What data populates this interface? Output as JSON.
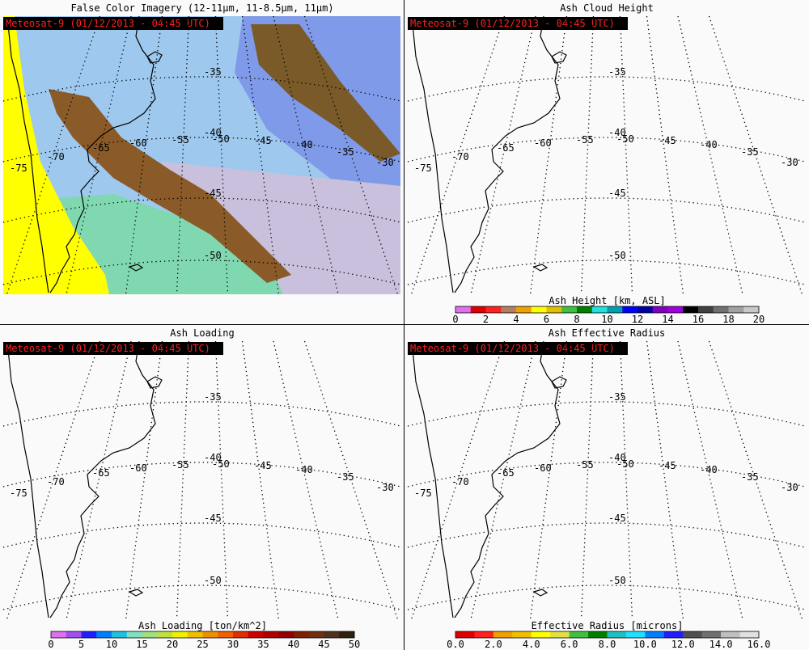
{
  "panels": [
    {
      "title": "False Color Imagery (12-11μm, 11-8.5μm, 11μm)",
      "stamp": "Meteosat-9  (01/12/2013 - 04:45 UTC)"
    },
    {
      "title": "Ash Cloud Height",
      "stamp": "Meteosat-9  (01/12/2013 - 04:45 UTC)",
      "colorbar": {
        "label": "Ash Height [km, ASL]",
        "ticks": [
          "0",
          "2",
          "4",
          "6",
          "8",
          "10",
          "12",
          "14",
          "16",
          "18",
          "20"
        ],
        "colors": [
          "#e070f0",
          "#e00000",
          "#ff2020",
          "#b08060",
          "#f0a000",
          "#ffff00",
          "#e0c000",
          "#40c040",
          "#008000",
          "#20e0e0",
          "#00a0b0",
          "#0000ff",
          "#0000a0",
          "#8000c0",
          "#a000e0",
          "#000000",
          "#404040",
          "#707070",
          "#a0a0a0",
          "#c8c8c8"
        ]
      }
    },
    {
      "title": "Ash Loading",
      "stamp": "Meteosat-9  (01/12/2013 - 04:45 UTC)",
      "colorbar": {
        "label": "Ash Loading [ton/km^2]",
        "ticks": [
          "0",
          "5",
          "10",
          "15",
          "20",
          "25",
          "30",
          "35",
          "40",
          "45",
          "50"
        ],
        "colors": [
          "#e070f0",
          "#a050f0",
          "#2020ff",
          "#0080ff",
          "#20c0e0",
          "#80e0c0",
          "#a0e080",
          "#c0e040",
          "#f0f000",
          "#f0c000",
          "#f09000",
          "#f06000",
          "#e03000",
          "#d00000",
          "#b00000",
          "#900000",
          "#802000",
          "#703010",
          "#503020",
          "#302010"
        ]
      }
    },
    {
      "title": "Ash Effective Radius",
      "stamp": "Meteosat-9  (01/12/2013 - 04:45 UTC)",
      "colorbar": {
        "label": "Effective Radius [microns]",
        "ticks": [
          "0.0",
          "2.0",
          "4.0",
          "6.0",
          "8.0",
          "10.0",
          "12.0",
          "14.0",
          "16.0"
        ],
        "colors": [
          "#e00000",
          "#ff2020",
          "#f0a000",
          "#f0c000",
          "#ffff00",
          "#e0e040",
          "#40c040",
          "#008000",
          "#20c0c0",
          "#20e0ff",
          "#0080ff",
          "#2020ff",
          "#505050",
          "#707070",
          "#c0c0c0",
          "#e0e0e0"
        ]
      }
    }
  ],
  "grid_labels": {
    "lat": [
      "-35",
      "-40",
      "-45",
      "-50"
    ],
    "lon": [
      "-75",
      "-70",
      "-65",
      "-60",
      "-55",
      "-50",
      "-45",
      "-40",
      "-35",
      "-30"
    ]
  }
}
